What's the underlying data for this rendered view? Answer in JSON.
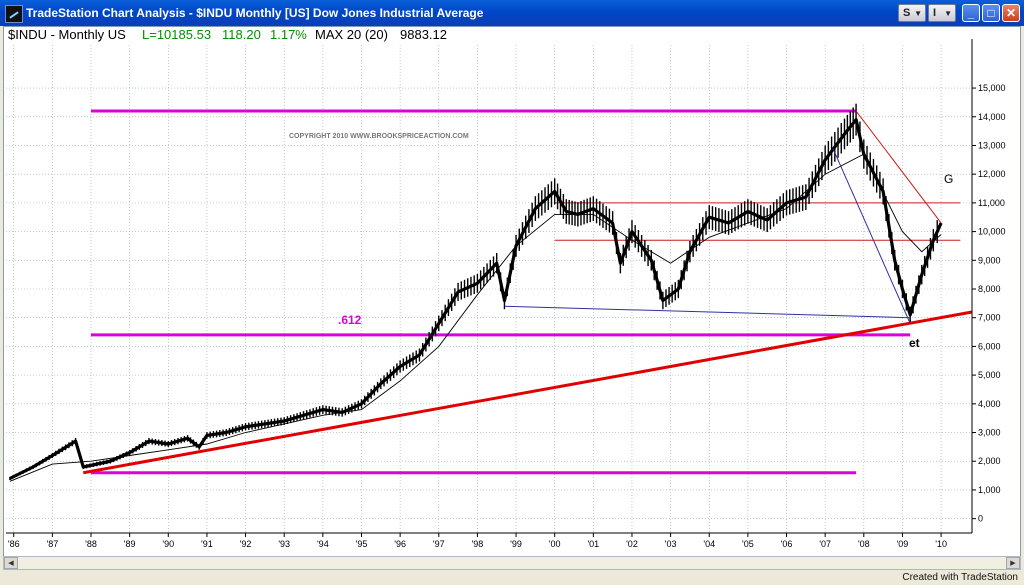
{
  "window": {
    "title": "TradeStation Chart Analysis - $INDU Monthly [US] Dow Jones Industrial Average",
    "s_button": "S",
    "i_button": "I",
    "minimize_label": "_",
    "maximize_label": "□",
    "close_label": "✕"
  },
  "header": {
    "symbol": "$INDU - Monthly  US",
    "last": "L=10185.53",
    "change": "118.20",
    "pct": "1.17%",
    "indicator": "MAX 20 (20)",
    "indicator_value": "9883.12"
  },
  "annotations": {
    "copyright": "COPYRIGHT 2010   WWW.BROOKSPRICEACTION.COM",
    "fib": ".612",
    "g": "G",
    "et": "et"
  },
  "status": {
    "created_with": "Created with TradeStation"
  },
  "colors": {
    "price": "#000000",
    "ma": "#000000",
    "magenta": "#dd00dd",
    "red_trend": "#e00000",
    "thin_red": "#c81e1e",
    "blue": "#3030a0",
    "green": "#009000"
  },
  "chart_data": {
    "type": "line",
    "subtype": "ohlc-bars",
    "series": [
      {
        "name": "",
        "x": [
          1985.9,
          1986.5,
          1987.0,
          1987.6,
          1987.8,
          1988.5,
          1989.0,
          1989.5,
          1990.0,
          1990.5,
          1990.8,
          1991.0,
          1991.5,
          1992.0,
          1992.5,
          1993.0,
          1993.5,
          1994.0,
          1994.5,
          1995.0,
          1995.5,
          1996.0,
          1996.5,
          1997.0,
          1997.5,
          1998.0,
          1998.5,
          1998.7,
          1999.0,
          1999.5,
          2000.0,
          2000.3,
          2000.6,
          2001.0,
          2001.5,
          2001.7,
          2002.0,
          2002.5,
          2002.8,
          2003.2,
          2003.5,
          2004.0,
          2004.5,
          2005.0,
          2005.5,
          2006.0,
          2006.5,
          2007.0,
          2007.5,
          2007.8,
          2008.0,
          2008.5,
          2008.8,
          2009.0,
          2009.2,
          2009.5,
          2009.8,
          2010.0
        ],
        "y": [
          1400,
          1800,
          2200,
          2700,
          1800,
          2000,
          2300,
          2700,
          2600,
          2800,
          2500,
          2900,
          3000,
          3200,
          3300,
          3400,
          3600,
          3800,
          3700,
          4000,
          4700,
          5300,
          5700,
          6800,
          7900,
          8200,
          8900,
          7600,
          9500,
          10800,
          11400,
          10700,
          10600,
          10800,
          10300,
          8900,
          10000,
          9000,
          7600,
          8000,
          9300,
          10500,
          10300,
          10700,
          10400,
          11000,
          11200,
          12500,
          13400,
          13900,
          12700,
          11400,
          9000,
          8000,
          7100,
          8500,
          9700,
          10300
        ]
      },
      {
        "name": "",
        "x": [
          1985.9,
          1987.0,
          1988.0,
          1989.0,
          1990.0,
          1991.0,
          1992.0,
          1993.0,
          1994.0,
          1995.0,
          1996.0,
          1997.0,
          1998.0,
          1999.0,
          2000.0,
          2001.0,
          2002.0,
          2003.0,
          2004.0,
          2005.0,
          2006.0,
          2007.0,
          2008.0,
          2009.0,
          2009.5,
          2010.0
        ],
        "y": [
          1300,
          1900,
          2000,
          2200,
          2400,
          2600,
          3000,
          3300,
          3600,
          3800,
          4800,
          6000,
          7800,
          9500,
          10600,
          10600,
          9700,
          8900,
          9800,
          10300,
          10800,
          12000,
          12700,
          10000,
          9300,
          9900
        ]
      }
    ],
    "x_tick_labels": [
      "'86",
      "'87",
      "'88",
      "'89",
      "'90",
      "'91",
      "'92",
      "'93",
      "'94",
      "'95",
      "'96",
      "'97",
      "'98",
      "'99",
      "'00",
      "'01",
      "'02",
      "'03",
      "'04",
      "'05",
      "'06",
      "'07",
      "'08",
      "'09",
      "'10"
    ],
    "x_ticks": [
      1986,
      1987,
      1988,
      1989,
      1990,
      1991,
      1992,
      1993,
      1994,
      1995,
      1996,
      1997,
      1998,
      1999,
      2000,
      2001,
      2002,
      2003,
      2004,
      2005,
      2006,
      2007,
      2008,
      2009,
      2010
    ],
    "y_ticks": [
      0,
      1000,
      2000,
      3000,
      4000,
      5000,
      6000,
      7000,
      8000,
      9000,
      10000,
      11000,
      12000,
      13000,
      14000,
      15000
    ],
    "y_tick_labels": [
      "0",
      "1,000",
      "2,000",
      "3,000",
      "4,000",
      "5,000",
      "6,000",
      "7,000",
      "8,000",
      "9,000",
      "10,000",
      "11,000",
      "12,000",
      "13,000",
      "14,000",
      "15,000"
    ],
    "xlim": [
      1985.8,
      2010.8
    ],
    "ylim": [
      -500,
      16500
    ],
    "levels": [
      {
        "y": 14200,
        "x": [
          1988.0,
          2007.8
        ],
        "color": "magenta",
        "width": 3
      },
      {
        "y": 6400,
        "x": [
          1988.0,
          2009.2
        ],
        "color": "magenta",
        "width": 3
      },
      {
        "y": 1600,
        "x": [
          1988.0,
          2007.8
        ],
        "color": "magenta",
        "width": 3
      },
      {
        "y": 11000,
        "x": [
          2000.0,
          2010.5
        ],
        "color": "thin_red",
        "width": 1
      },
      {
        "y": 9700,
        "x": [
          2000.0,
          2010.5
        ],
        "color": "thin_red",
        "width": 1
      }
    ],
    "trendlines": [
      {
        "x1": 1987.8,
        "y1": 1600,
        "x2": 2010.8,
        "y2": 7200,
        "color": "red_trend",
        "width": 3
      },
      {
        "x1": 2007.8,
        "y1": 14200,
        "x2": 2010.0,
        "y2": 10300,
        "color": "thin_red",
        "width": 1
      },
      {
        "x1": 1998.7,
        "y1": 7400,
        "x2": 2009.2,
        "y2": 7000,
        "color": "blue",
        "width": 1
      },
      {
        "x1": 2007.2,
        "y1": 12900,
        "x2": 2009.2,
        "y2": 6800,
        "color": "blue",
        "width": 1
      }
    ],
    "grid": true,
    "legend": "none"
  }
}
